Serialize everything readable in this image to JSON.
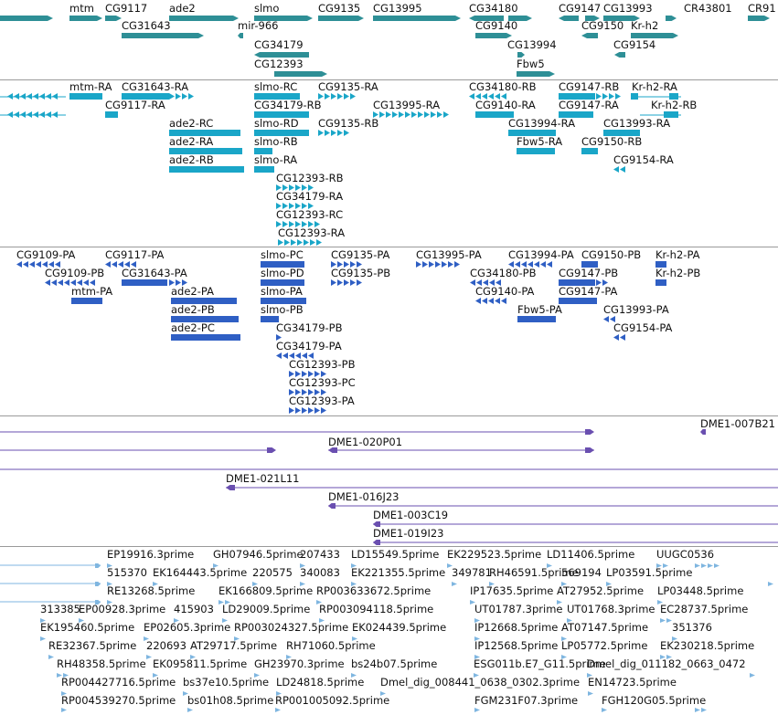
{
  "colors": {
    "gene": "#2e8f96",
    "gene_dark": "#1f6f78",
    "transcript_cyan": "#1aa6c8",
    "transcript_blue": "#2f5fc4",
    "clone": "#6a4fb0",
    "est": "#7fb6e0",
    "separator": "#9a9a9a"
  },
  "tracks": {
    "genes": {
      "labels": [
        "mtm",
        "CG9117",
        "ade2",
        "slmo",
        "CG9135",
        "CG13995",
        "CG34180",
        "CG9147",
        "CG13993",
        "CR43801",
        "CR91",
        "CG31643",
        "mir-966",
        "CG9140",
        "CG9150",
        "Kr-h2",
        "CG34179",
        "CG13994",
        "CG9154",
        "CG12393",
        "Fbw5"
      ]
    },
    "transcripts_cyan": {
      "labels": [
        "mtm-RA",
        "CG31643-RA",
        "slmo-RC",
        "CG9135-RA",
        "CG34180-RB",
        "CG9147-RB",
        "Kr-h2-RA",
        "CG9117-RA",
        "CG34179-RB",
        "CG13995-RA",
        "CG9140-RA",
        "CG9147-RA",
        "Kr-h2-RB",
        "ade2-RC",
        "slmo-RD",
        "CG9135-RB",
        "CG13994-RA",
        "CG13993-RA",
        "ade2-RA",
        "slmo-RB",
        "Fbw5-RA",
        "CG9150-RB",
        "ade2-RB",
        "slmo-RA",
        "CG9154-RA",
        "CG12393-RB",
        "CG34179-RA",
        "CG12393-RC",
        "CG12393-RA"
      ]
    },
    "transcripts_blue": {
      "labels": [
        "CG9109-PA",
        "CG9117-PA",
        "slmo-PC",
        "CG9135-PA",
        "CG13995-PA",
        "CG13994-PA",
        "CG9150-PB",
        "Kr-h2-PA",
        "CG9109-PB",
        "CG31643-PA",
        "slmo-PD",
        "CG9135-PB",
        "CG34180-PB",
        "CG9147-PB",
        "Kr-h2-PB",
        "mtm-PA",
        "ade2-PA",
        "slmo-PA",
        "CG9140-PA",
        "CG9147-PA",
        "ade2-PB",
        "slmo-PB",
        "Fbw5-PA",
        "CG13993-PA",
        "ade2-PC",
        "CG34179-PB",
        "CG9154-PA",
        "CG34179-PA",
        "CG12393-PB",
        "CG12393-PC",
        "CG12393-PA"
      ]
    },
    "clones": {
      "labels": [
        "DME1-007B21",
        "DME1-020P01",
        "DME1-021L11",
        "DME1-016J23",
        "DME1-003C19",
        "DME1-019I23"
      ]
    },
    "ests": {
      "labels": [
        "EP19916.3prime",
        "GH07946.5prime",
        "207433",
        "LD15549.5prime",
        "EK229523.5prime",
        "LD11406.5prime",
        "UUGC0536",
        "515370",
        "EK164443.5prime",
        "220575",
        "340083",
        "EK221355.5prime",
        "349781",
        "RH46591.5prime",
        "569194",
        "LP03591.5prime",
        "RE13268.5prime",
        "EK166809.5prime",
        "RP003633672.5prime",
        "IP17635.5prime",
        "AT27952.5prime",
        "LP03448.5prime",
        "313385",
        "EP00928.3prime",
        "415903",
        "LD29009.5prime",
        "RP003094118.5prime",
        "UT01787.3prime",
        "UT01768.3prime",
        "EC28737.5prime",
        "EK195460.5prime",
        "EP02605.3prime",
        "RP003024327.5prime",
        "EK024439.5prime",
        "IP12668.5prime",
        "AT07147.5prime",
        "351376",
        "RE32367.5prime",
        "220693",
        "AT29717.5prime",
        "RH71060.5prime",
        "IP12568.5prime",
        "LP05772.5prime",
        "EK230218.5prime",
        "RH48358.5prime",
        "EK095811.5prime",
        "GH23970.3prime",
        "bs24b07.5prime",
        "ESG011b.E7_G11.5prime",
        "Dmel_dig_011182_0663_0472",
        "RP004427716.5prime",
        "bs37e10.5prime",
        "LD24818.5prime",
        "Dmel_dig_008441_0638_0302.3prime",
        "EN14723.5prime",
        "RP004539270.5prime",
        "bs01h08.5prime",
        "RP001005092.5prime",
        "FGM231F07.3prime",
        "FGH120G05.5prime"
      ]
    }
  }
}
